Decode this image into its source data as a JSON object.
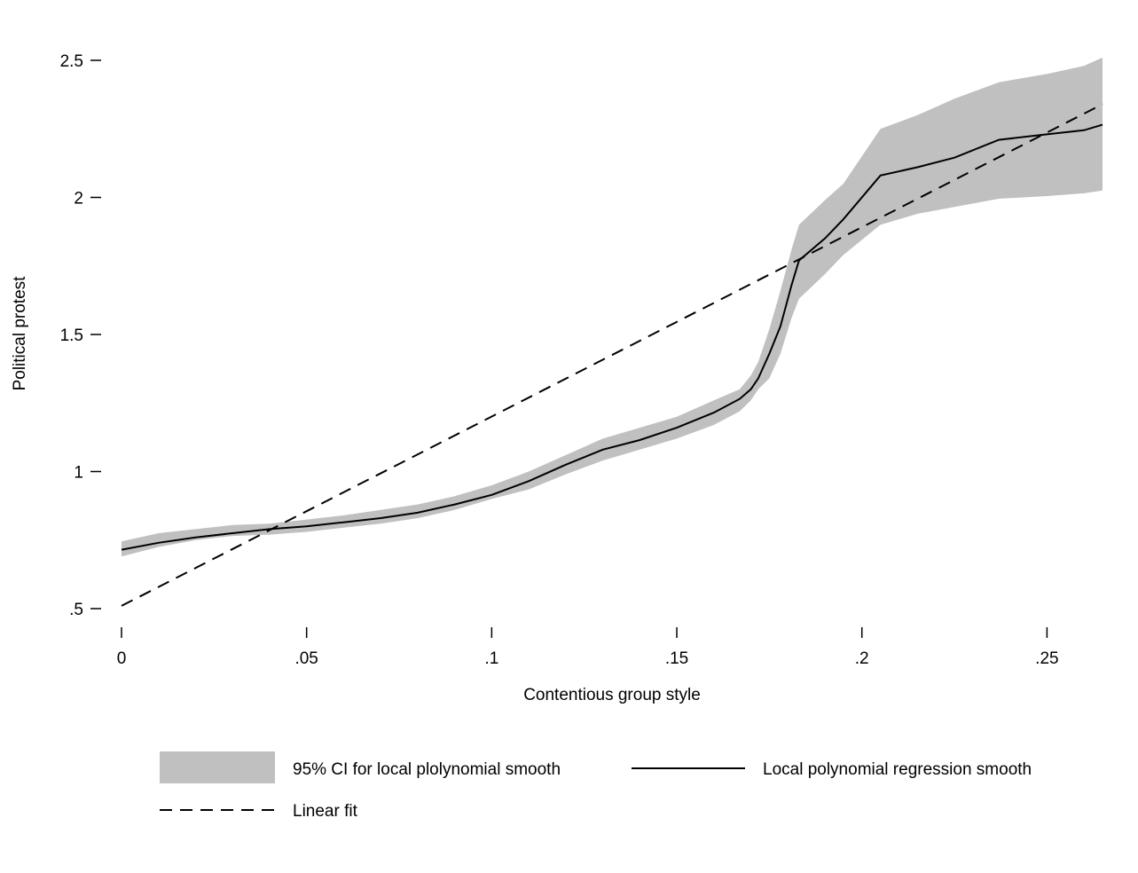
{
  "chart_data": {
    "type": "line",
    "title": "",
    "xlabel": "Contentious group style",
    "ylabel": "Political protest",
    "xlim": [
      0,
      0.265
    ],
    "ylim": [
      0.5,
      2.5
    ],
    "x_ticks": [
      {
        "value": 0,
        "label": "0"
      },
      {
        "value": 0.05,
        "label": ".05"
      },
      {
        "value": 0.1,
        "label": ".1"
      },
      {
        "value": 0.15,
        "label": ".15"
      },
      {
        "value": 0.2,
        "label": ".2"
      },
      {
        "value": 0.25,
        "label": ".25"
      }
    ],
    "y_ticks": [
      {
        "value": 0.5,
        "label": ".5"
      },
      {
        "value": 1,
        "label": "1"
      },
      {
        "value": 1.5,
        "label": "1.5"
      },
      {
        "value": 2,
        "label": "2"
      },
      {
        "value": 2.5,
        "label": "2.5"
      }
    ],
    "grid": false,
    "legend_position": "bottom",
    "series": [
      {
        "name": "95% CI for local plolynomial smooth",
        "kind": "band",
        "color": "#c0c0c0",
        "x": [
          0,
          0.01,
          0.02,
          0.03,
          0.04,
          0.05,
          0.06,
          0.07,
          0.08,
          0.09,
          0.1,
          0.11,
          0.12,
          0.13,
          0.14,
          0.15,
          0.16,
          0.167,
          0.17,
          0.172,
          0.175,
          0.178,
          0.181,
          0.183,
          0.19,
          0.195,
          0.205,
          0.215,
          0.225,
          0.237,
          0.25,
          0.26,
          0.265
        ],
        "lower": [
          0.69,
          0.725,
          0.75,
          0.765,
          0.77,
          0.78,
          0.795,
          0.81,
          0.83,
          0.86,
          0.9,
          0.935,
          0.99,
          1.04,
          1.08,
          1.12,
          1.17,
          1.22,
          1.26,
          1.3,
          1.34,
          1.43,
          1.56,
          1.63,
          1.72,
          1.79,
          1.9,
          1.94,
          1.965,
          1.995,
          2.005,
          2.015,
          2.025
        ],
        "upper": [
          0.745,
          0.775,
          0.79,
          0.805,
          0.81,
          0.825,
          0.84,
          0.86,
          0.88,
          0.91,
          0.95,
          1.0,
          1.06,
          1.12,
          1.16,
          1.2,
          1.26,
          1.3,
          1.35,
          1.4,
          1.52,
          1.66,
          1.81,
          1.9,
          1.99,
          2.05,
          2.25,
          2.3,
          2.36,
          2.42,
          2.45,
          2.48,
          2.51
        ]
      },
      {
        "name": "Local polynomial regression smooth",
        "kind": "line",
        "dash": "solid",
        "color": "#000000",
        "x": [
          0,
          0.01,
          0.02,
          0.03,
          0.04,
          0.05,
          0.06,
          0.07,
          0.08,
          0.09,
          0.1,
          0.11,
          0.12,
          0.13,
          0.14,
          0.15,
          0.16,
          0.167,
          0.17,
          0.172,
          0.175,
          0.178,
          0.181,
          0.183,
          0.19,
          0.195,
          0.205,
          0.215,
          0.225,
          0.237,
          0.25,
          0.26,
          0.265
        ],
        "y": [
          0.715,
          0.74,
          0.76,
          0.775,
          0.79,
          0.8,
          0.815,
          0.83,
          0.85,
          0.88,
          0.915,
          0.965,
          1.025,
          1.08,
          1.115,
          1.16,
          1.215,
          1.265,
          1.3,
          1.34,
          1.43,
          1.53,
          1.68,
          1.77,
          1.85,
          1.92,
          2.08,
          2.11,
          2.145,
          2.21,
          2.23,
          2.245,
          2.265
        ]
      },
      {
        "name": "Linear fit",
        "kind": "line",
        "dash": "dashed",
        "color": "#000000",
        "x": [
          0,
          0.265
        ],
        "y": [
          0.51,
          2.34
        ]
      }
    ]
  }
}
